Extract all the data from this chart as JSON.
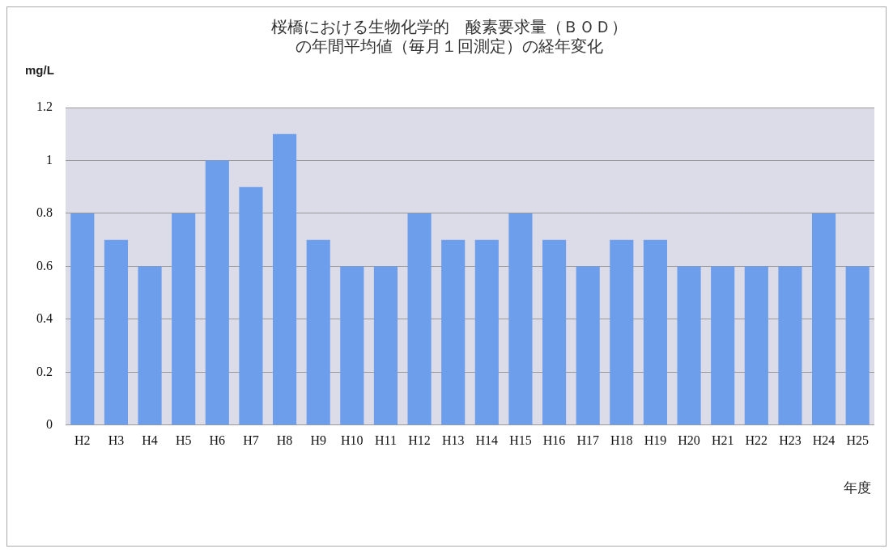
{
  "chart_data": {
    "type": "bar",
    "title": "桜橋における生物化学的　酸素要求量（ＢＯＤ）の年間平均値（毎月１回測定）の経年変化",
    "ylabel": "mg/L",
    "xlabel": "年度",
    "categories": [
      "H2",
      "H3",
      "H4",
      "H5",
      "H6",
      "H7",
      "H8",
      "H9",
      "H10",
      "H11",
      "H12",
      "H13",
      "H14",
      "H15",
      "H16",
      "H17",
      "H18",
      "H19",
      "H20",
      "H21",
      "H22",
      "H23",
      "H24",
      "H25"
    ],
    "values": [
      0.8,
      0.7,
      0.6,
      0.8,
      1.0,
      0.9,
      1.1,
      0.7,
      0.6,
      0.6,
      0.8,
      0.7,
      0.7,
      0.8,
      0.7,
      0.6,
      0.7,
      0.7,
      0.6,
      0.6,
      0.6,
      0.6,
      0.8,
      0.6
    ],
    "color": "#6d9eeb",
    "ylim": [
      0,
      1.2
    ],
    "yticks": [
      0,
      0.2,
      0.4,
      0.6,
      0.8,
      1,
      1.2
    ],
    "grid": "y",
    "legend": false
  }
}
